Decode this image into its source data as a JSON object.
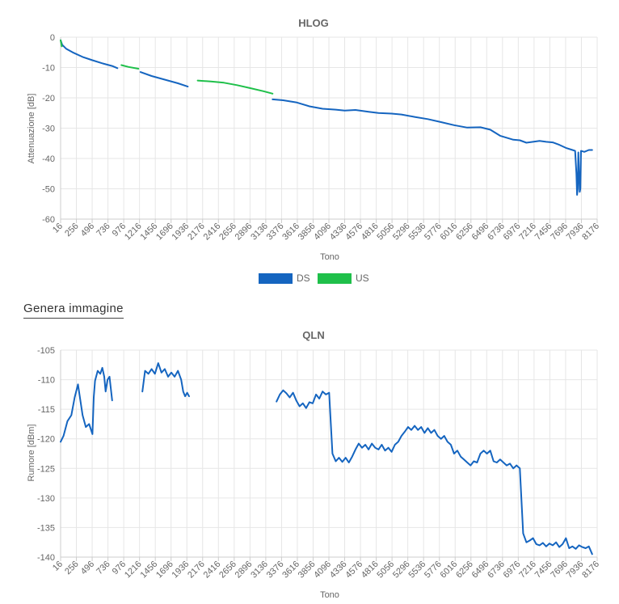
{
  "generate_image_label": "Genera immagine",
  "colors": {
    "ds": "#1565c0",
    "us": "#1fc04a"
  },
  "chart_data": [
    {
      "type": "line",
      "title": "HLOG",
      "xlabel": "Tono",
      "ylabel": "Attenuazione [dB]",
      "xlim": [
        16,
        8176
      ],
      "ylim": [
        -60,
        0
      ],
      "yticks": [
        0,
        -10,
        -20,
        -30,
        -40,
        -50,
        -60
      ],
      "xticks": [
        "16",
        "256",
        "496",
        "736",
        "976",
        "1216",
        "1456",
        "1696",
        "1936",
        "2176",
        "2416",
        "2656",
        "2896",
        "3136",
        "3376",
        "3616",
        "3856",
        "4096",
        "4336",
        "4576",
        "4816",
        "5056",
        "5296",
        "5536",
        "5776",
        "6016",
        "6256",
        "6496",
        "6736",
        "6976",
        "7216",
        "7456",
        "7696",
        "7936",
        "8176"
      ],
      "grid": true,
      "legend": "bottom-center",
      "legend_entries": [
        "DS",
        "US"
      ],
      "series": [
        {
          "name": "DS",
          "color": "#1565c0",
          "segments": [
            [
              [
                16,
                -1
              ],
              [
                40,
                -2.5
              ],
              [
                100,
                -3.8
              ],
              [
                200,
                -5
              ],
              [
                350,
                -6.5
              ],
              [
                500,
                -7.6
              ],
              [
                650,
                -8.6
              ],
              [
                800,
                -9.5
              ],
              [
                880,
                -10.2
              ]
            ],
            [
              [
                1230,
                -11.5
              ],
              [
                1400,
                -12.8
              ],
              [
                1600,
                -14
              ],
              [
                1800,
                -15.2
              ],
              [
                1950,
                -16.3
              ]
            ],
            [
              [
                3240,
                -20.5
              ],
              [
                3400,
                -20.8
              ],
              [
                3600,
                -21.5
              ],
              [
                3800,
                -22.8
              ],
              [
                4000,
                -23.6
              ],
              [
                4200,
                -23.9
              ],
              [
                4336,
                -24.2
              ],
              [
                4500,
                -24
              ],
              [
                4700,
                -24.6
              ],
              [
                4850,
                -25
              ],
              [
                5050,
                -25.2
              ],
              [
                5200,
                -25.5
              ],
              [
                5400,
                -26.3
              ],
              [
                5600,
                -27
              ],
              [
                5800,
                -28
              ],
              [
                6000,
                -29
              ],
              [
                6200,
                -29.8
              ],
              [
                6400,
                -29.7
              ],
              [
                6550,
                -30.5
              ],
              [
                6700,
                -32.5
              ],
              [
                6900,
                -33.8
              ],
              [
                7000,
                -34
              ],
              [
                7100,
                -34.8
              ],
              [
                7200,
                -34.5
              ],
              [
                7300,
                -34.2
              ],
              [
                7400,
                -34.5
              ],
              [
                7500,
                -34.7
              ],
              [
                7600,
                -35.5
              ],
              [
                7700,
                -36.5
              ],
              [
                7800,
                -37.2
              ],
              [
                7840,
                -37.5
              ],
              [
                7860,
                -45
              ],
              [
                7870,
                -52
              ],
              [
                7880,
                -50
              ],
              [
                7890,
                -38
              ],
              [
                7910,
                -51
              ],
              [
                7920,
                -50
              ],
              [
                7930,
                -37.5
              ],
              [
                7980,
                -37.8
              ],
              [
                8050,
                -37.2
              ],
              [
                8100,
                -37.2
              ]
            ]
          ]
        },
        {
          "name": "US",
          "color": "#1fc04a",
          "segments": [
            [
              [
                16,
                -1
              ],
              [
                25,
                -2
              ],
              [
                35,
                -3
              ]
            ],
            [
              [
                940,
                -9.2
              ],
              [
                1050,
                -9.8
              ],
              [
                1200,
                -10.4
              ]
            ],
            [
              [
                2100,
                -14.3
              ],
              [
                2300,
                -14.6
              ],
              [
                2500,
                -15
              ],
              [
                2700,
                -15.8
              ],
              [
                2900,
                -16.8
              ],
              [
                3100,
                -17.8
              ],
              [
                3240,
                -18.6
              ]
            ]
          ]
        }
      ]
    },
    {
      "type": "line",
      "title": "QLN",
      "xlabel": "Tono",
      "ylabel": "Rumore [dBm]",
      "xlim": [
        16,
        8176
      ],
      "ylim": [
        -140,
        -105
      ],
      "yticks": [
        -105,
        -110,
        -115,
        -120,
        -125,
        -130,
        -135,
        -140
      ],
      "xticks": [
        "16",
        "256",
        "496",
        "736",
        "976",
        "1216",
        "1456",
        "1696",
        "1936",
        "2176",
        "2416",
        "2656",
        "2896",
        "3136",
        "3376",
        "3616",
        "3856",
        "4096",
        "4336",
        "4576",
        "4816",
        "5056",
        "5296",
        "5536",
        "5776",
        "6016",
        "6256",
        "6496",
        "6736",
        "6976",
        "7216",
        "7456",
        "7696",
        "7936",
        "8176"
      ],
      "grid": true,
      "series": [
        {
          "name": "",
          "color": "#1565c0",
          "segments": [
            [
              [
                16,
                -120.5
              ],
              [
                60,
                -119.5
              ],
              [
                120,
                -117
              ],
              [
                180,
                -116
              ],
              [
                230,
                -113
              ],
              [
                280,
                -110.8
              ],
              [
                310,
                -113
              ],
              [
                350,
                -116
              ],
              [
                400,
                -118
              ],
              [
                450,
                -117.5
              ],
              [
                500,
                -119.2
              ],
              [
                520,
                -113
              ],
              [
                540,
                -110.2
              ],
              [
                580,
                -108.5
              ],
              [
                620,
                -109
              ],
              [
                650,
                -108
              ],
              [
                680,
                -109.5
              ],
              [
                700,
                -112
              ],
              [
                730,
                -110
              ],
              [
                760,
                -109.5
              ],
              [
                800,
                -113.5
              ]
            ],
            [
              [
                1260,
                -112
              ],
              [
                1300,
                -108.5
              ],
              [
                1350,
                -109
              ],
              [
                1400,
                -108.2
              ],
              [
                1450,
                -109
              ],
              [
                1500,
                -107.2
              ],
              [
                1550,
                -108.8
              ],
              [
                1600,
                -108.2
              ],
              [
                1650,
                -109.5
              ],
              [
                1700,
                -108.8
              ],
              [
                1750,
                -109.5
              ],
              [
                1800,
                -108.5
              ],
              [
                1850,
                -110
              ],
              [
                1880,
                -112
              ],
              [
                1910,
                -112.8
              ],
              [
                1940,
                -112.2
              ],
              [
                1970,
                -112.8
              ]
            ],
            [
              [
                3300,
                -113.7
              ],
              [
                3350,
                -112.5
              ],
              [
                3400,
                -111.8
              ],
              [
                3450,
                -112.3
              ],
              [
                3500,
                -113
              ],
              [
                3550,
                -112.2
              ],
              [
                3600,
                -113.5
              ],
              [
                3650,
                -114.5
              ],
              [
                3700,
                -114
              ],
              [
                3750,
                -114.8
              ],
              [
                3800,
                -113.8
              ],
              [
                3850,
                -114
              ],
              [
                3900,
                -112.5
              ],
              [
                3950,
                -113.2
              ],
              [
                4000,
                -112
              ],
              [
                4050,
                -112.5
              ],
              [
                4100,
                -112.2
              ],
              [
                4150,
                -122.5
              ],
              [
                4200,
                -123.8
              ],
              [
                4250,
                -123.2
              ],
              [
                4300,
                -123.9
              ],
              [
                4350,
                -123.2
              ],
              [
                4400,
                -124
              ],
              [
                4450,
                -123
              ],
              [
                4500,
                -121.8
              ],
              [
                4550,
                -120.8
              ],
              [
                4600,
                -121.5
              ],
              [
                4650,
                -121
              ],
              [
                4700,
                -121.8
              ],
              [
                4750,
                -120.8
              ],
              [
                4800,
                -121.5
              ],
              [
                4850,
                -121.8
              ],
              [
                4900,
                -121
              ],
              [
                4950,
                -122
              ],
              [
                5000,
                -121.5
              ],
              [
                5050,
                -122.2
              ],
              [
                5100,
                -121
              ],
              [
                5150,
                -120.5
              ],
              [
                5200,
                -119.5
              ],
              [
                5250,
                -118.8
              ],
              [
                5300,
                -118
              ],
              [
                5350,
                -118.5
              ],
              [
                5400,
                -117.8
              ],
              [
                5450,
                -118.5
              ],
              [
                5500,
                -118
              ],
              [
                5550,
                -119
              ],
              [
                5600,
                -118.2
              ],
              [
                5650,
                -119
              ],
              [
                5700,
                -118.5
              ],
              [
                5750,
                -119.5
              ],
              [
                5800,
                -120
              ],
              [
                5850,
                -119.5
              ],
              [
                5900,
                -120.5
              ],
              [
                5950,
                -121
              ],
              [
                6000,
                -122.5
              ],
              [
                6050,
                -122
              ],
              [
                6100,
                -123
              ],
              [
                6150,
                -123.5
              ],
              [
                6200,
                -124
              ],
              [
                6250,
                -124.5
              ],
              [
                6300,
                -123.8
              ],
              [
                6350,
                -124
              ],
              [
                6400,
                -122.5
              ],
              [
                6450,
                -122
              ],
              [
                6500,
                -122.5
              ],
              [
                6550,
                -122
              ],
              [
                6600,
                -123.8
              ],
              [
                6650,
                -124
              ],
              [
                6700,
                -123.5
              ],
              [
                6750,
                -124
              ],
              [
                6800,
                -124.5
              ],
              [
                6850,
                -124.2
              ],
              [
                6900,
                -125
              ],
              [
                6950,
                -124.5
              ],
              [
                7000,
                -125
              ],
              [
                7050,
                -136
              ],
              [
                7100,
                -137.5
              ],
              [
                7150,
                -137.2
              ],
              [
                7200,
                -136.8
              ],
              [
                7250,
                -137.8
              ],
              [
                7300,
                -138
              ],
              [
                7350,
                -137.6
              ],
              [
                7400,
                -138.2
              ],
              [
                7450,
                -137.7
              ],
              [
                7500,
                -138
              ],
              [
                7550,
                -137.5
              ],
              [
                7600,
                -138.3
              ],
              [
                7650,
                -137.8
              ],
              [
                7700,
                -136.8
              ],
              [
                7750,
                -138.5
              ],
              [
                7800,
                -138.2
              ],
              [
                7850,
                -138.6
              ],
              [
                7900,
                -138
              ],
              [
                7950,
                -138.3
              ],
              [
                8000,
                -138.5
              ],
              [
                8050,
                -138.2
              ],
              [
                8100,
                -139.5
              ]
            ]
          ]
        }
      ]
    }
  ]
}
